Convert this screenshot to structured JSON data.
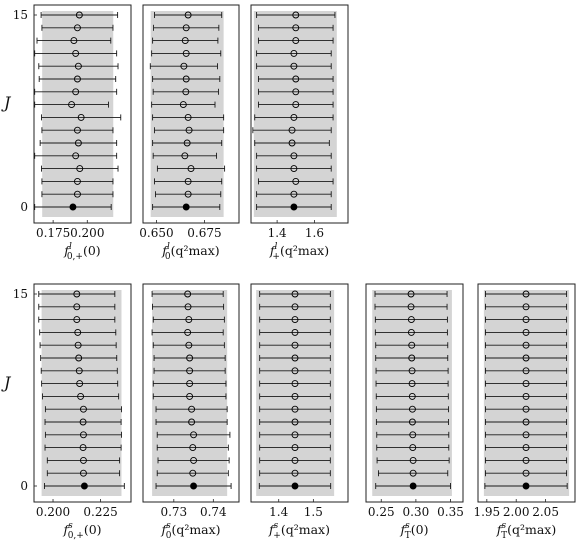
{
  "y_axis": {
    "label": "J",
    "ticks": [
      0,
      15
    ]
  },
  "chart_data": [
    {
      "type": "scatter",
      "xlabel": "f",
      "xsup": "l",
      "xsub": "0,+",
      "xarg": "(0)",
      "xlim": [
        0.161,
        0.232
      ],
      "band": [
        0.167,
        0.219
      ],
      "ticks": [
        0.175,
        0.2
      ],
      "tick_labels": [
        "0.175",
        "0.200"
      ],
      "j": [
        0,
        1,
        2,
        3,
        4,
        5,
        6,
        7,
        8,
        9,
        10,
        11,
        12,
        13,
        14,
        15
      ],
      "y": [
        0.1895,
        0.1928,
        0.1928,
        0.1945,
        0.1915,
        0.1935,
        0.1928,
        0.1955,
        0.1885,
        0.1915,
        0.1928,
        0.1935,
        0.1915,
        0.1902,
        0.1928,
        0.1942
      ],
      "err": [
        0.028,
        0.026,
        0.026,
        0.028,
        0.03,
        0.028,
        0.026,
        0.029,
        0.027,
        0.03,
        0.028,
        0.029,
        0.03,
        0.027,
        0.026,
        0.028
      ]
    },
    {
      "type": "scatter",
      "xlabel": "f",
      "xsup": "l",
      "xsub": "0",
      "xarg": "(q²max)",
      "xlim": [
        0.643,
        0.693
      ],
      "band": [
        0.647,
        0.685
      ],
      "ticks": [
        0.65,
        0.675
      ],
      "tick_labels": [
        "0.650",
        "0.675"
      ],
      "j": [
        0,
        1,
        2,
        3,
        4,
        5,
        6,
        7,
        8,
        9,
        10,
        11,
        12,
        13,
        14,
        15
      ],
      "y": [
        0.6655,
        0.6665,
        0.6665,
        0.668,
        0.6648,
        0.666,
        0.667,
        0.6665,
        0.664,
        0.6653,
        0.6655,
        0.6643,
        0.6655,
        0.665,
        0.6655,
        0.6665
      ],
      "err": [
        0.0175,
        0.017,
        0.0175,
        0.0175,
        0.0165,
        0.018,
        0.018,
        0.0185,
        0.0165,
        0.017,
        0.0175,
        0.0175,
        0.018,
        0.017,
        0.017,
        0.0175
      ]
    },
    {
      "type": "scatter",
      "xlabel": "f",
      "xsup": "l",
      "xsub": "+",
      "xarg": "(q²max)",
      "xlim": [
        1.26,
        1.78
      ],
      "band": [
        1.275,
        1.72
      ],
      "ticks": [
        1.4,
        1.6
      ],
      "tick_labels": [
        "1.4",
        "1.6"
      ],
      "j": [
        0,
        1,
        2,
        3,
        4,
        5,
        6,
        7,
        8,
        9,
        10,
        11,
        12,
        13,
        14,
        15
      ],
      "y": [
        1.49,
        1.49,
        1.5,
        1.49,
        1.49,
        1.48,
        1.48,
        1.49,
        1.5,
        1.5,
        1.5,
        1.49,
        1.49,
        1.5,
        1.5,
        1.5
      ],
      "err": [
        0.2,
        0.2,
        0.2,
        0.2,
        0.2,
        0.2,
        0.21,
        0.21,
        0.2,
        0.2,
        0.2,
        0.2,
        0.2,
        0.2,
        0.2,
        0.21
      ]
    },
    {
      "type": "scatter",
      "xlabel": "f",
      "xsup": "s",
      "xsub": "0,+",
      "xarg": "(0)",
      "xlim": [
        0.19,
        0.241
      ],
      "band": [
        0.194,
        0.236
      ],
      "ticks": [
        0.2,
        0.225
      ],
      "tick_labels": [
        "0.200",
        "0.225"
      ],
      "j": [
        0,
        1,
        2,
        3,
        4,
        5,
        6,
        7,
        8,
        9,
        10,
        11,
        12,
        13,
        14,
        15
      ],
      "y": [
        0.2165,
        0.216,
        0.216,
        0.2158,
        0.216,
        0.2158,
        0.216,
        0.2145,
        0.214,
        0.2138,
        0.2135,
        0.2132,
        0.213,
        0.2125,
        0.2125,
        0.2125
      ],
      "err": [
        0.021,
        0.019,
        0.019,
        0.02,
        0.02,
        0.02,
        0.02,
        0.02,
        0.02,
        0.02,
        0.02,
        0.02,
        0.02,
        0.02,
        0.02,
        0.02
      ]
    },
    {
      "type": "scatter",
      "xlabel": "f",
      "xsup": "s",
      "xsub": "0",
      "xarg": "(q²max)",
      "xlim": [
        0.7222,
        0.7465
      ],
      "band": [
        0.7245,
        0.7435
      ],
      "ticks": [
        0.73,
        0.74
      ],
      "tick_labels": [
        "0.73",
        "0.74"
      ],
      "j": [
        0,
        1,
        2,
        3,
        4,
        5,
        6,
        7,
        8,
        9,
        10,
        11,
        12,
        13,
        14,
        15
      ],
      "y": [
        0.735,
        0.7348,
        0.735,
        0.7348,
        0.735,
        0.7345,
        0.7345,
        0.734,
        0.734,
        0.734,
        0.734,
        0.7338,
        0.7335,
        0.7338,
        0.7336,
        0.7335
      ],
      "err": [
        0.0095,
        0.009,
        0.009,
        0.009,
        0.0092,
        0.009,
        0.009,
        0.0092,
        0.0092,
        0.009,
        0.009,
        0.009,
        0.009,
        0.009,
        0.009,
        0.009
      ]
    },
    {
      "type": "scatter",
      "xlabel": "f",
      "xsup": "s",
      "xsub": "+",
      "xarg": "(q²max)",
      "xlim": [
        1.32,
        1.6
      ],
      "band": [
        1.335,
        1.56
      ],
      "ticks": [
        1.4,
        1.5
      ],
      "tick_labels": [
        "1.4",
        "1.5"
      ],
      "j": [
        0,
        1,
        2,
        3,
        4,
        5,
        6,
        7,
        8,
        9,
        10,
        11,
        12,
        13,
        14,
        15
      ],
      "y": [
        1.447,
        1.447,
        1.447,
        1.447,
        1.447,
        1.447,
        1.447,
        1.447,
        1.447,
        1.447,
        1.447,
        1.447,
        1.447,
        1.447,
        1.447,
        1.447
      ],
      "err": [
        0.103,
        0.102,
        0.102,
        0.102,
        0.102,
        0.102,
        0.102,
        0.102,
        0.102,
        0.102,
        0.102,
        0.102,
        0.102,
        0.102,
        0.102,
        0.102
      ]
    },
    {
      "type": "scatter",
      "xlabel": "f",
      "xsup": "s",
      "xsub": "T",
      "xarg": "(0)",
      "xlim": [
        0.228,
        0.368
      ],
      "band": [
        0.237,
        0.352
      ],
      "ticks": [
        0.25,
        0.3,
        0.35
      ],
      "tick_labels": [
        "0.25",
        "0.30",
        "0.35"
      ],
      "j": [
        0,
        1,
        2,
        3,
        4,
        5,
        6,
        7,
        8,
        9,
        10,
        11,
        12,
        13,
        14,
        15
      ],
      "y": [
        0.296,
        0.296,
        0.296,
        0.2955,
        0.2955,
        0.295,
        0.295,
        0.2948,
        0.2945,
        0.2945,
        0.294,
        0.294,
        0.2935,
        0.2935,
        0.293,
        0.293
      ],
      "err": [
        0.054,
        0.05,
        0.052,
        0.052,
        0.052,
        0.052,
        0.052,
        0.052,
        0.052,
        0.052,
        0.052,
        0.052,
        0.052,
        0.052,
        0.052,
        0.052
      ]
    },
    {
      "type": "scatter",
      "xlabel": "f",
      "xsup": "s",
      "xsub": "T",
      "xarg": "(q²max)",
      "xlim": [
        1.935,
        2.1
      ],
      "band": [
        1.945,
        2.09
      ],
      "ticks": [
        1.95,
        2.0,
        2.05
      ],
      "tick_labels": [
        "1.95",
        "2.00",
        "2.05"
      ],
      "j": [
        0,
        1,
        2,
        3,
        4,
        5,
        6,
        7,
        8,
        9,
        10,
        11,
        12,
        13,
        14,
        15
      ],
      "y": [
        2.0167,
        2.0167,
        2.0167,
        2.0167,
        2.0167,
        2.0167,
        2.0167,
        2.0167,
        2.0167,
        2.0167,
        2.0167,
        2.0167,
        2.0167,
        2.0167,
        2.0167,
        2.0167
      ],
      "err": [
        0.07,
        0.069,
        0.069,
        0.069,
        0.069,
        0.069,
        0.069,
        0.069,
        0.069,
        0.069,
        0.069,
        0.069,
        0.069,
        0.069,
        0.069,
        0.069
      ]
    }
  ]
}
